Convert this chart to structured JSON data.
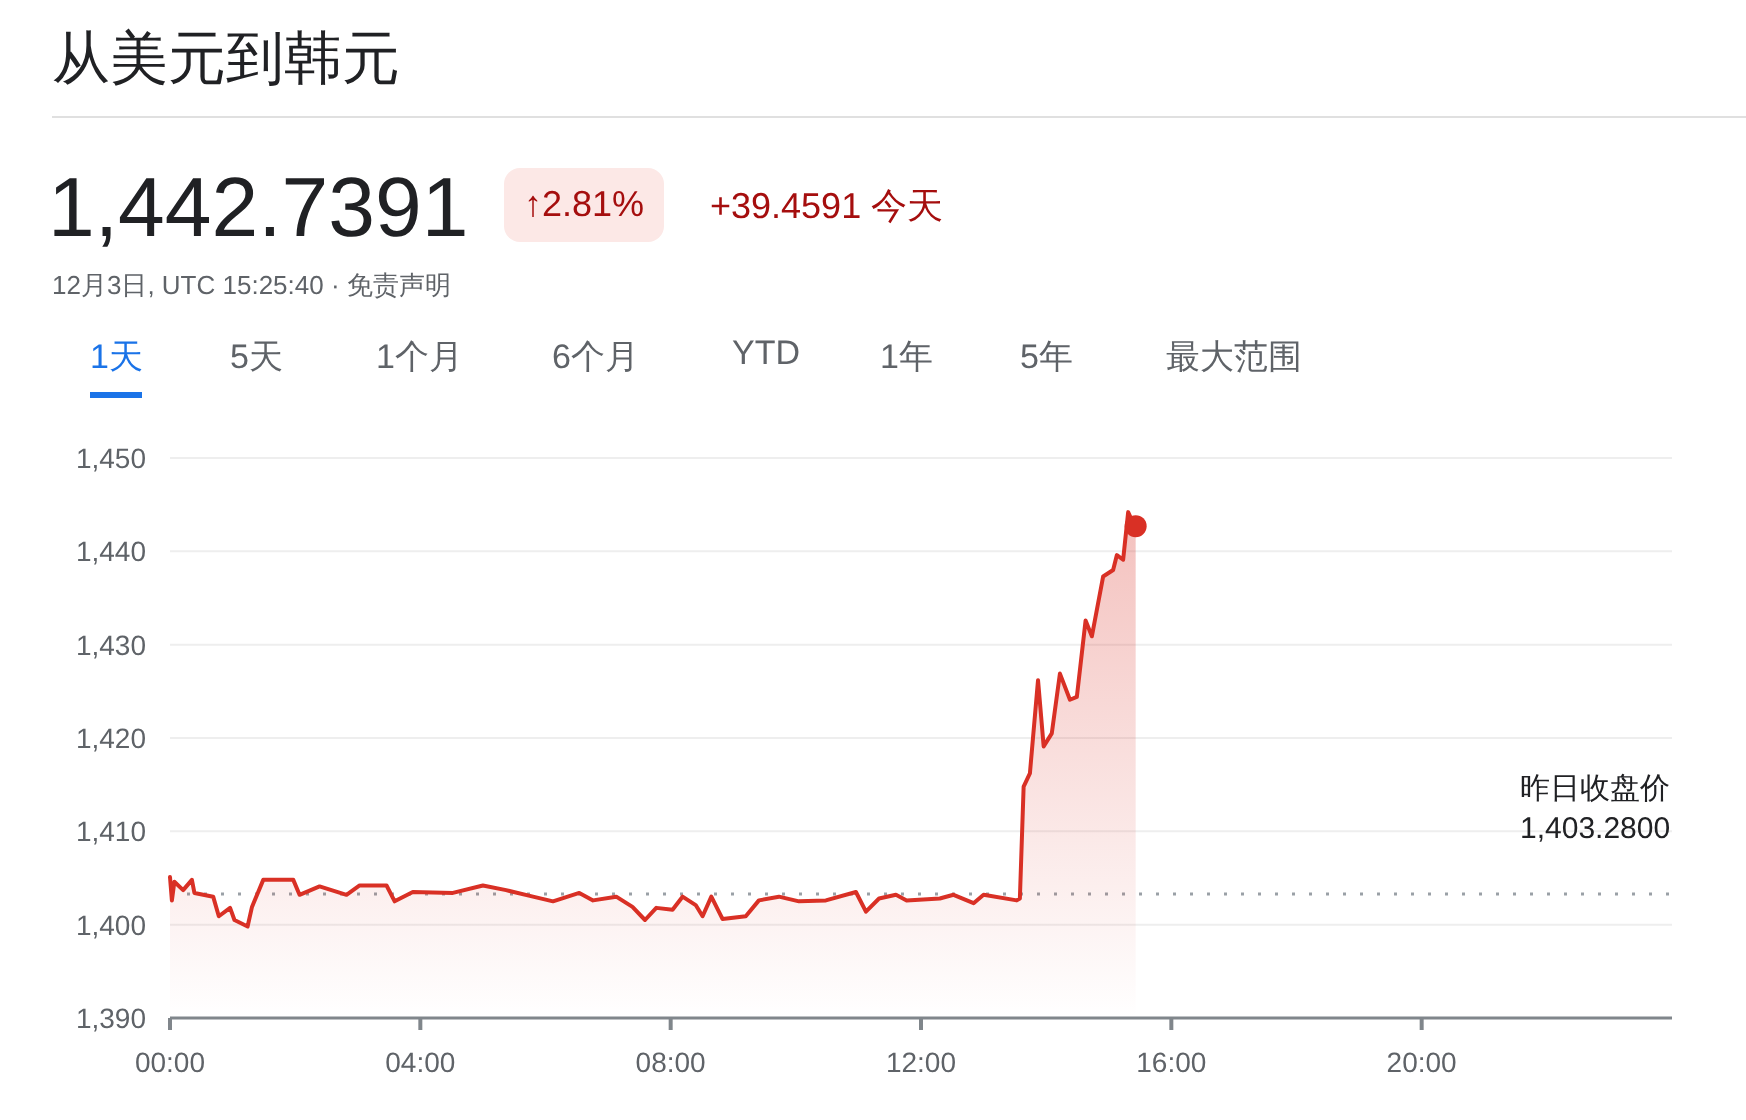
{
  "chart_data": {
    "type": "area",
    "title": "从美元到韩元",
    "annotations": [
      "1,442.7391",
      "↑2.81%",
      "+39.4591 今天",
      "12月3日, UTC 15:25:40 · 免责声明",
      "1天",
      "5天",
      "1个月",
      "6个月",
      "YTD",
      "1年",
      "5年",
      "最大范围"
    ],
    "xlim": [
      0,
      24
    ],
    "xticks": [
      {
        "value": 0,
        "label": "00:00"
      },
      {
        "value": 4,
        "label": "04:00"
      },
      {
        "value": 8,
        "label": "08:00"
      },
      {
        "value": 12,
        "label": "12:00"
      },
      {
        "value": 16,
        "label": "16:00"
      },
      {
        "value": 20,
        "label": "20:00"
      }
    ],
    "ylim": [
      1390,
      1450
    ],
    "yticks": [
      {
        "value": 1390,
        "label": "1,390"
      },
      {
        "value": 1400,
        "label": "1,400"
      },
      {
        "value": 1410,
        "label": "1,410"
      },
      {
        "value": 1420,
        "label": "1,420"
      },
      {
        "value": 1430,
        "label": "1,430"
      },
      {
        "value": 1440,
        "label": "1,440"
      },
      {
        "value": 1450,
        "label": "1,450"
      }
    ],
    "grid": "y",
    "ref_lines": [
      {
        "axis": "y",
        "value": 1403.28,
        "label": "昨日收盘价 1,403.2800",
        "color": "#9aa0a6",
        "line_style": "dotted"
      }
    ],
    "series": [
      {
        "color": "#d93025",
        "x": [
          0,
          0.03,
          0.07,
          0.21,
          0.35,
          0.39,
          0.69,
          0.78,
          0.96,
          1.03,
          1.24,
          1.31,
          1.49,
          1.97,
          2.07,
          2.39,
          2.82,
          3.03,
          3.46,
          3.59,
          3.88,
          4.52,
          5.0,
          5.37,
          5.8,
          6.12,
          6.54,
          6.76,
          7.13,
          7.39,
          7.59,
          7.77,
          8.03,
          8.19,
          8.4,
          8.51,
          8.65,
          8.83,
          9.2,
          9.41,
          9.73,
          10.05,
          10.48,
          10.96,
          11.12,
          11.33,
          11.6,
          11.77,
          12.3,
          12.52,
          12.84,
          13.0,
          13.53,
          13.58,
          13.64,
          13.74,
          13.87,
          13.96,
          14.09,
          14.22,
          14.38,
          14.49,
          14.63,
          14.73,
          14.91,
          15.07,
          15.13,
          15.23,
          15.31,
          15.39,
          15.43
        ],
        "values": [
          1405.1,
          1402.6,
          1404.6,
          1403.7,
          1404.8,
          1403.4,
          1403.0,
          1400.9,
          1401.8,
          1400.5,
          1399.8,
          1401.9,
          1404.8,
          1404.8,
          1403.2,
          1404.1,
          1403.2,
          1404.2,
          1404.2,
          1402.5,
          1403.5,
          1403.4,
          1404.2,
          1403.7,
          1403.0,
          1402.5,
          1403.4,
          1402.6,
          1403.0,
          1401.9,
          1400.5,
          1401.8,
          1401.6,
          1403.0,
          1402.1,
          1400.9,
          1403.0,
          1400.6,
          1400.9,
          1402.6,
          1403.0,
          1402.5,
          1402.6,
          1403.5,
          1401.4,
          1402.8,
          1403.2,
          1402.6,
          1402.8,
          1403.2,
          1402.3,
          1403.2,
          1402.6,
          1402.8,
          1414.8,
          1416.2,
          1426.2,
          1419.1,
          1420.5,
          1426.9,
          1424.1,
          1424.4,
          1432.6,
          1430.9,
          1437.3,
          1438.0,
          1439.6,
          1439.1,
          1444.2,
          1443.0,
          1442.7
        ]
      },
      {
        "type": "scatter",
        "color": "#d93025",
        "x": [
          15.43
        ],
        "values": [
          1442.7
        ]
      }
    ]
  }
}
